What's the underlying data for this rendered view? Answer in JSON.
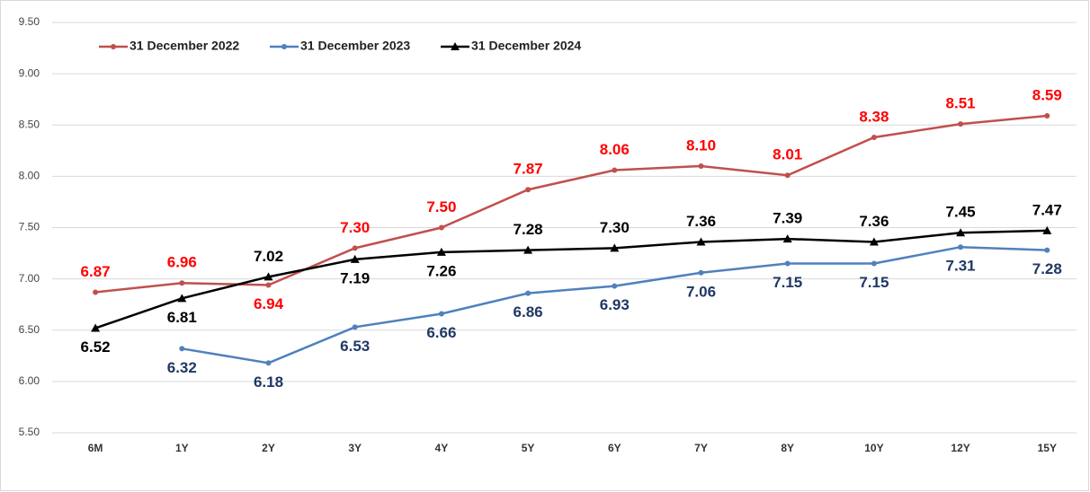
{
  "chart_data": {
    "type": "line",
    "categories": [
      "6M",
      "1Y",
      "2Y",
      "3Y",
      "4Y",
      "5Y",
      "6Y",
      "7Y",
      "8Y",
      "10Y",
      "12Y",
      "15Y"
    ],
    "series": [
      {
        "name": "31 December 2022",
        "color": "#c0504d",
        "label_color": "#ff0000",
        "marker": "circle",
        "values": [
          6.87,
          6.96,
          6.94,
          7.3,
          7.5,
          7.87,
          8.06,
          8.1,
          8.01,
          8.38,
          8.51,
          8.59
        ],
        "value_labels": [
          "6.87",
          "6.96",
          "6.94",
          "7.30",
          "7.50",
          "7.87",
          "8.06",
          "8.10",
          "8.01",
          "8.38",
          "8.51",
          "8.59"
        ]
      },
      {
        "name": "31 December 2023",
        "color": "#4f81bd",
        "label_color": "#1f3864",
        "marker": "circle",
        "values": [
          null,
          6.32,
          6.18,
          6.53,
          6.66,
          6.86,
          6.93,
          7.06,
          7.15,
          7.15,
          7.31,
          7.28
        ],
        "value_labels": [
          null,
          "6.32",
          "6.18",
          "6.53",
          "6.66",
          "6.86",
          "6.93",
          "7.06",
          "7.15",
          "7.15",
          "7.31",
          "7.28"
        ]
      },
      {
        "name": "31 December 2024",
        "color": "#000000",
        "label_color": "#000000",
        "marker": "triangle",
        "values": [
          6.52,
          6.81,
          7.02,
          7.19,
          7.26,
          7.28,
          7.3,
          7.36,
          7.39,
          7.36,
          7.45,
          7.47
        ],
        "value_labels": [
          "6.52",
          "6.81",
          "7.02",
          "7.19",
          "7.26",
          "7.28",
          "7.30",
          "7.36",
          "7.39",
          "7.36",
          "7.45",
          "7.47"
        ]
      }
    ],
    "ylim": [
      5.5,
      9.5
    ],
    "yticks": [
      {
        "value": 5.5,
        "label": "5.50"
      },
      {
        "value": 6,
        "label": "6.00"
      },
      {
        "value": 6.5,
        "label": "6.50"
      },
      {
        "value": 7,
        "label": "7.00"
      },
      {
        "value": 7.5,
        "label": "7.50"
      },
      {
        "value": 8,
        "label": "8.00"
      },
      {
        "value": 8.5,
        "label": "8.50"
      },
      {
        "value": 9,
        "label": "9.00"
      },
      {
        "value": 9.5,
        "label": "9.50"
      }
    ],
    "grid": true,
    "legend": "top-left"
  }
}
